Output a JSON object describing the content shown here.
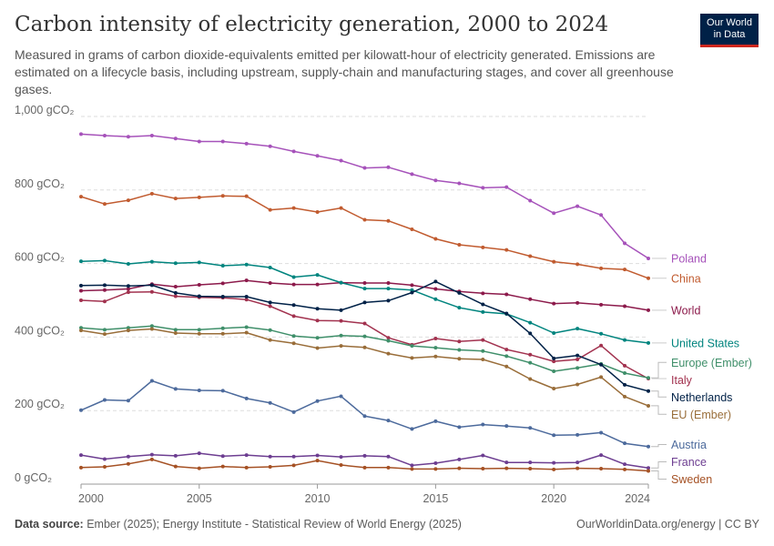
{
  "header": {
    "title": "Carbon intensity of electricity generation, 2000 to 2024",
    "subtitle": "Measured in grams of carbon dioxide-equivalents emitted per kilowatt-hour of electricity generated. Emissions are estimated on a lifecycle basis, including upstream, supply-chain and manufacturing stages, and cover all greenhouse gases.",
    "logo_line1": "Our World",
    "logo_line2": "in Data"
  },
  "footer": {
    "source_label": "Data source:",
    "source_text": "Ember (2025); Energy Institute - Statistical Review of World Energy (2025)",
    "right_text": "OurWorldinData.org/energy | CC BY"
  },
  "colors": {
    "Poland": "#a652ba",
    "China": "#c15b2f",
    "World": "#8c1a4b",
    "United States": "#00847e",
    "Italy": "#a2324f",
    "Europe (Ember)": "#3f8f6a",
    "Netherlands": "#002147",
    "EU (Ember)": "#996d39",
    "Austria": "#4c6a9c",
    "France": "#6d3e91",
    "Sweden": "#a55124"
  },
  "chart_data": {
    "type": "line",
    "title": "Carbon intensity of electricity generation, 2000 to 2024",
    "x": [
      2000,
      2001,
      2002,
      2003,
      2004,
      2005,
      2006,
      2007,
      2008,
      2009,
      2010,
      2011,
      2012,
      2013,
      2014,
      2015,
      2016,
      2017,
      2018,
      2019,
      2020,
      2021,
      2022,
      2023,
      2024
    ],
    "xticks": [
      "2000",
      "2005",
      "2010",
      "2015",
      "2020",
      "2024"
    ],
    "yticks": [
      "0 gCO₂",
      "200 gCO₂",
      "400 gCO₂",
      "600 gCO₂",
      "800 gCO₂",
      "1,000 gCO₂"
    ],
    "ylim": [
      0,
      1000
    ],
    "grid": "horizontal dashed",
    "legend": "right, labels at line ends",
    "series": [
      {
        "name": "Poland",
        "values": [
          952,
          948,
          945,
          948,
          940,
          932,
          932,
          926,
          919,
          905,
          893,
          880,
          860,
          862,
          843,
          826,
          818,
          806,
          808,
          771,
          737,
          756,
          732,
          655,
          614
        ]
      },
      {
        "name": "China",
        "values": [
          782,
          762,
          772,
          790,
          777,
          780,
          784,
          783,
          746,
          751,
          740,
          751,
          719,
          716,
          693,
          667,
          651,
          644,
          637,
          620,
          605,
          598,
          587,
          584,
          560
        ]
      },
      {
        "name": "World",
        "values": [
          526,
          528,
          531,
          544,
          537,
          542,
          546,
          554,
          547,
          543,
          543,
          548,
          547,
          547,
          541,
          531,
          524,
          519,
          516,
          503,
          491,
          493,
          488,
          484,
          473
        ]
      },
      {
        "name": "United States",
        "values": [
          606,
          608,
          599,
          605,
          601,
          603,
          594,
          597,
          589,
          563,
          569,
          548,
          532,
          532,
          528,
          503,
          480,
          468,
          463,
          439,
          411,
          423,
          409,
          392,
          384
        ]
      },
      {
        "name": "Italy",
        "values": [
          500,
          497,
          522,
          523,
          511,
          508,
          507,
          502,
          484,
          457,
          445,
          444,
          437,
          398,
          379,
          396,
          388,
          392,
          366,
          352,
          334,
          339,
          377,
          322,
          287
        ]
      },
      {
        "name": "Europe (Ember)",
        "values": [
          425,
          420,
          425,
          430,
          420,
          420,
          424,
          427,
          419,
          403,
          398,
          404,
          402,
          390,
          376,
          371,
          365,
          362,
          348,
          330,
          307,
          316,
          327,
          302,
          289
        ]
      },
      {
        "name": "Netherlands",
        "values": [
          540,
          541,
          539,
          541,
          520,
          511,
          510,
          510,
          494,
          487,
          477,
          473,
          494,
          499,
          521,
          551,
          520,
          489,
          464,
          410,
          342,
          350,
          325,
          270,
          253
        ]
      },
      {
        "name": "EU (Ember)",
        "values": [
          418,
          408,
          418,
          422,
          411,
          409,
          409,
          412,
          392,
          383,
          370,
          376,
          372,
          355,
          343,
          347,
          341,
          339,
          320,
          286,
          260,
          271,
          291,
          238,
          213
        ]
      },
      {
        "name": "Austria",
        "values": [
          201,
          229,
          227,
          281,
          259,
          255,
          254,
          233,
          221,
          196,
          226,
          239,
          185,
          173,
          150,
          171,
          155,
          162,
          158,
          153,
          133,
          134,
          140,
          111,
          102
        ]
      },
      {
        "name": "France",
        "values": [
          79,
          68,
          75,
          80,
          77,
          84,
          76,
          79,
          75,
          75,
          78,
          74,
          77,
          75,
          51,
          57,
          67,
          78,
          59,
          59,
          58,
          59,
          79,
          54,
          44
        ]
      },
      {
        "name": "Sweden",
        "values": [
          45,
          47,
          55,
          67,
          48,
          43,
          48,
          45,
          47,
          51,
          64,
          52,
          45,
          45,
          41,
          41,
          43,
          42,
          43,
          42,
          40,
          43,
          42,
          40,
          36
        ]
      }
    ]
  }
}
